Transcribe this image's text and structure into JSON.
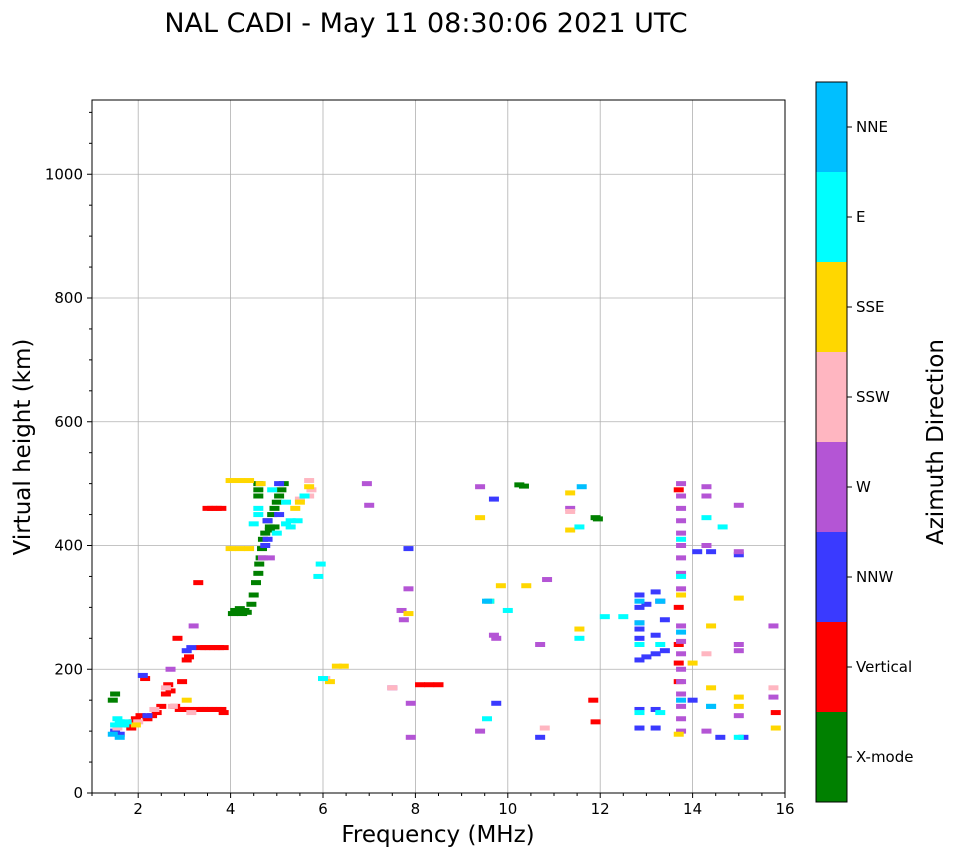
{
  "chart_data": {
    "type": "scatter",
    "title": "NAL CADI - May 11 08:30:06 2021 UTC",
    "xlabel": "Frequency (MHz)",
    "ylabel": "Virtual height (km)",
    "xlim": [
      1,
      16
    ],
    "ylim": [
      0,
      1120
    ],
    "xticks": [
      2,
      4,
      6,
      8,
      10,
      12,
      14,
      16
    ],
    "yticks": [
      0,
      200,
      400,
      600,
      800,
      1000
    ],
    "grid": true,
    "colorbar": {
      "label": "Azimuth Direction",
      "categories": [
        "X-mode",
        "Vertical",
        "NNW",
        "W",
        "SSW",
        "SSE",
        "E",
        "NNE"
      ],
      "colors": [
        "#008000",
        "#ff0000",
        "#3a3aff",
        "#b455d5",
        "#ffb6c1",
        "#ffd700",
        "#00ffff",
        "#00bfff"
      ]
    },
    "series": [
      {
        "name": "X-mode",
        "points": [
          [
            1.45,
            150
          ],
          [
            1.5,
            160
          ],
          [
            4.05,
            290
          ],
          [
            4.1,
            295
          ],
          [
            4.15,
            292
          ],
          [
            4.2,
            298
          ],
          [
            4.25,
            290
          ],
          [
            4.3,
            295
          ],
          [
            4.35,
            292
          ],
          [
            4.45,
            305
          ],
          [
            4.5,
            320
          ],
          [
            4.55,
            340
          ],
          [
            4.6,
            355
          ],
          [
            4.62,
            370
          ],
          [
            4.65,
            380
          ],
          [
            4.68,
            395
          ],
          [
            4.7,
            410
          ],
          [
            4.75,
            420
          ],
          [
            4.8,
            440
          ],
          [
            4.85,
            430
          ],
          [
            4.9,
            450
          ],
          [
            4.95,
            460
          ],
          [
            5.0,
            470
          ],
          [
            5.05,
            480
          ],
          [
            5.1,
            490
          ],
          [
            5.15,
            500
          ],
          [
            4.6,
            480
          ],
          [
            4.6,
            490
          ],
          [
            4.6,
            500
          ],
          [
            10.25,
            498
          ],
          [
            10.35,
            496
          ],
          [
            11.9,
            445
          ],
          [
            11.95,
            443
          ],
          [
            4.95,
            430
          ],
          [
            4.85,
            425
          ]
        ]
      },
      {
        "name": "Vertical",
        "points": [
          [
            1.8,
            110
          ],
          [
            1.85,
            105
          ],
          [
            1.9,
            115
          ],
          [
            1.95,
            120
          ],
          [
            2.05,
            125
          ],
          [
            2.2,
            120
          ],
          [
            2.3,
            125
          ],
          [
            2.4,
            130
          ],
          [
            2.5,
            140
          ],
          [
            2.6,
            160
          ],
          [
            2.65,
            175
          ],
          [
            2.7,
            165
          ],
          [
            2.8,
            140
          ],
          [
            2.9,
            135
          ],
          [
            3.0,
            135
          ],
          [
            3.1,
            135
          ],
          [
            3.3,
            135
          ],
          [
            3.4,
            135
          ],
          [
            3.5,
            135
          ],
          [
            3.6,
            135
          ],
          [
            3.7,
            135
          ],
          [
            3.8,
            135
          ],
          [
            3.85,
            130
          ],
          [
            2.15,
            185
          ],
          [
            2.95,
            180
          ],
          [
            3.05,
            215
          ],
          [
            3.1,
            220
          ],
          [
            3.35,
            235
          ],
          [
            3.45,
            235
          ],
          [
            3.55,
            235
          ],
          [
            3.65,
            235
          ],
          [
            3.75,
            235
          ],
          [
            3.85,
            235
          ],
          [
            2.85,
            250
          ],
          [
            3.5,
            460
          ],
          [
            3.6,
            460
          ],
          [
            3.7,
            460
          ],
          [
            3.8,
            460
          ],
          [
            3.3,
            340
          ],
          [
            8.1,
            175
          ],
          [
            8.3,
            175
          ],
          [
            8.5,
            175
          ],
          [
            11.85,
            150
          ],
          [
            11.9,
            115
          ],
          [
            13.7,
            180
          ],
          [
            13.7,
            210
          ],
          [
            13.7,
            240
          ],
          [
            13.7,
            300
          ],
          [
            13.7,
            490
          ],
          [
            15.8,
            130
          ]
        ]
      },
      {
        "name": "NNW",
        "points": [
          [
            1.5,
            100
          ],
          [
            1.6,
            95
          ],
          [
            2.2,
            125
          ],
          [
            2.1,
            190
          ],
          [
            3.05,
            230
          ],
          [
            3.15,
            235
          ],
          [
            4.75,
            400
          ],
          [
            4.8,
            410
          ],
          [
            4.8,
            440
          ],
          [
            5.05,
            450
          ],
          [
            5.05,
            500
          ],
          [
            7.85,
            395
          ],
          [
            9.7,
            475
          ],
          [
            9.75,
            145
          ],
          [
            10.7,
            90
          ],
          [
            12.85,
            215
          ],
          [
            13.0,
            220
          ],
          [
            13.2,
            225
          ],
          [
            13.4,
            230
          ],
          [
            12.85,
            250
          ],
          [
            13.2,
            255
          ],
          [
            12.85,
            265
          ],
          [
            12.85,
            275
          ],
          [
            13.4,
            280
          ],
          [
            12.85,
            300
          ],
          [
            13.0,
            305
          ],
          [
            13.3,
            310
          ],
          [
            12.85,
            320
          ],
          [
            13.2,
            325
          ],
          [
            12.85,
            135
          ],
          [
            13.2,
            135
          ],
          [
            12.85,
            105
          ],
          [
            13.2,
            105
          ],
          [
            14.1,
            390
          ],
          [
            14.4,
            390
          ],
          [
            15.0,
            385
          ],
          [
            14.6,
            90
          ],
          [
            15.1,
            90
          ],
          [
            14.0,
            150
          ]
        ]
      },
      {
        "name": "W",
        "points": [
          [
            2.7,
            200
          ],
          [
            3.2,
            270
          ],
          [
            4.7,
            380
          ],
          [
            4.85,
            380
          ],
          [
            6.95,
            500
          ],
          [
            7.0,
            465
          ],
          [
            7.7,
            295
          ],
          [
            7.75,
            280
          ],
          [
            7.85,
            330
          ],
          [
            7.9,
            145
          ],
          [
            7.9,
            90
          ],
          [
            9.4,
            100
          ],
          [
            9.4,
            495
          ],
          [
            9.7,
            255
          ],
          [
            9.75,
            250
          ],
          [
            10.7,
            240
          ],
          [
            10.85,
            345
          ],
          [
            11.35,
            460
          ],
          [
            13.75,
            500
          ],
          [
            13.75,
            480
          ],
          [
            13.75,
            460
          ],
          [
            13.75,
            440
          ],
          [
            13.75,
            420
          ],
          [
            13.75,
            400
          ],
          [
            13.75,
            380
          ],
          [
            13.75,
            355
          ],
          [
            13.75,
            330
          ],
          [
            13.75,
            270
          ],
          [
            13.75,
            245
          ],
          [
            13.75,
            225
          ],
          [
            13.75,
            200
          ],
          [
            13.75,
            180
          ],
          [
            13.75,
            160
          ],
          [
            13.75,
            140
          ],
          [
            13.75,
            120
          ],
          [
            13.75,
            100
          ],
          [
            14.3,
            495
          ],
          [
            14.3,
            480
          ],
          [
            14.3,
            400
          ],
          [
            14.3,
            100
          ],
          [
            15.0,
            240
          ],
          [
            15.0,
            230
          ],
          [
            15.0,
            465
          ],
          [
            15.0,
            390
          ],
          [
            15.0,
            125
          ],
          [
            15.75,
            270
          ],
          [
            15.75,
            155
          ],
          [
            7.5,
            170
          ]
        ]
      },
      {
        "name": "SSW",
        "points": [
          [
            1.55,
            105
          ],
          [
            2.0,
            115
          ],
          [
            2.35,
            135
          ],
          [
            2.6,
            170
          ],
          [
            2.75,
            140
          ],
          [
            3.15,
            130
          ],
          [
            5.5,
            475
          ],
          [
            5.7,
            480
          ],
          [
            5.75,
            490
          ],
          [
            5.7,
            505
          ],
          [
            6.05,
            185
          ],
          [
            7.5,
            170
          ],
          [
            10.8,
            105
          ],
          [
            11.35,
            455
          ],
          [
            14.3,
            225
          ],
          [
            15.75,
            170
          ]
        ]
      },
      {
        "name": "SSE",
        "points": [
          [
            1.95,
            110
          ],
          [
            3.05,
            150
          ],
          [
            4.0,
            505
          ],
          [
            4.2,
            505
          ],
          [
            4.4,
            505
          ],
          [
            4.0,
            395
          ],
          [
            4.2,
            395
          ],
          [
            4.4,
            395
          ],
          [
            4.65,
            500
          ],
          [
            5.4,
            460
          ],
          [
            5.5,
            470
          ],
          [
            5.7,
            495
          ],
          [
            6.15,
            180
          ],
          [
            6.3,
            205
          ],
          [
            6.45,
            205
          ],
          [
            7.85,
            290
          ],
          [
            9.4,
            445
          ],
          [
            9.85,
            335
          ],
          [
            10.4,
            335
          ],
          [
            11.35,
            485
          ],
          [
            11.35,
            425
          ],
          [
            11.55,
            265
          ],
          [
            13.7,
            95
          ],
          [
            13.75,
            320
          ],
          [
            14.0,
            210
          ],
          [
            14.4,
            270
          ],
          [
            14.4,
            170
          ],
          [
            15.0,
            155
          ],
          [
            15.0,
            140
          ],
          [
            15.0,
            315
          ],
          [
            15.8,
            105
          ],
          [
            9.6,
            310
          ]
        ]
      },
      {
        "name": "E",
        "points": [
          [
            1.5,
            110
          ],
          [
            1.55,
            120
          ],
          [
            1.6,
            115
          ],
          [
            1.7,
            110
          ],
          [
            1.75,
            115
          ],
          [
            4.6,
            460
          ],
          [
            4.6,
            450
          ],
          [
            4.5,
            435
          ],
          [
            5.2,
            435
          ],
          [
            5.3,
            440
          ],
          [
            5.45,
            440
          ],
          [
            5.0,
            420
          ],
          [
            5.3,
            430
          ],
          [
            4.9,
            490
          ],
          [
            5.2,
            470
          ],
          [
            5.6,
            480
          ],
          [
            6.0,
            185
          ],
          [
            5.9,
            350
          ],
          [
            5.95,
            370
          ],
          [
            9.55,
            120
          ],
          [
            9.6,
            310
          ],
          [
            10.0,
            295
          ],
          [
            11.55,
            430
          ],
          [
            11.55,
            250
          ],
          [
            12.1,
            285
          ],
          [
            12.5,
            285
          ],
          [
            12.85,
            130
          ],
          [
            13.3,
            130
          ],
          [
            12.85,
            240
          ],
          [
            13.3,
            240
          ],
          [
            13.75,
            350
          ],
          [
            13.75,
            410
          ],
          [
            14.3,
            445
          ],
          [
            14.65,
            430
          ],
          [
            14.4,
            140
          ],
          [
            15.0,
            90
          ]
        ]
      },
      {
        "name": "NNE",
        "points": [
          [
            1.45,
            95
          ],
          [
            1.6,
            90
          ],
          [
            9.55,
            310
          ],
          [
            11.6,
            495
          ],
          [
            12.85,
            310
          ],
          [
            13.3,
            310
          ],
          [
            12.85,
            275
          ],
          [
            13.75,
            260
          ],
          [
            13.75,
            150
          ],
          [
            14.4,
            140
          ]
        ]
      }
    ]
  }
}
